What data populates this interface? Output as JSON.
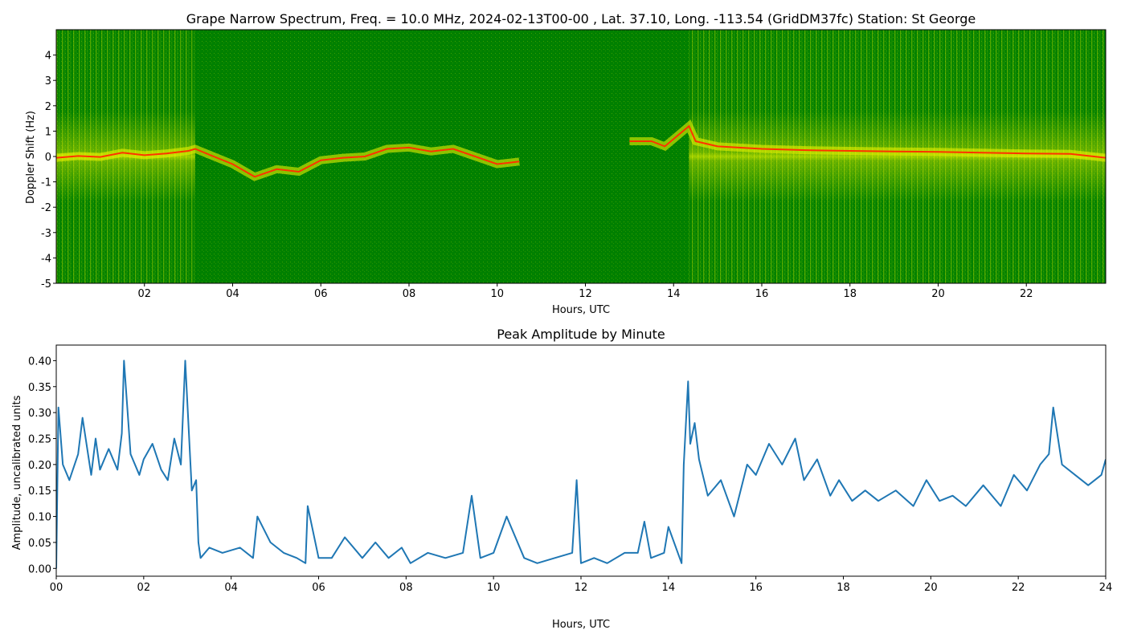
{
  "chart_data": [
    {
      "type": "heatmap",
      "title": "Grape Narrow Spectrum, Freq. = 10.0 MHz, 2024-02-13T00-00 , Lat.  37.10, Long. -113.54 (GridDM37fc) Station: St George",
      "xlabel": "Hours, UTC",
      "ylabel": "Doppler Shift (Hz)",
      "xlim": [
        0,
        23.8
      ],
      "ylim": [
        -5,
        5
      ],
      "x_ticks": [
        "02",
        "04",
        "06",
        "08",
        "10",
        "12",
        "14",
        "16",
        "18",
        "20",
        "22"
      ],
      "x_tick_values": [
        2,
        4,
        6,
        8,
        10,
        12,
        14,
        16,
        18,
        20,
        22
      ],
      "y_ticks": [
        "-5",
        "-4",
        "-3",
        "-2",
        "-1",
        "0",
        "1",
        "2",
        "3",
        "4"
      ],
      "y_tick_values": [
        -5,
        -4,
        -3,
        -2,
        -1,
        0,
        1,
        2,
        3,
        4
      ],
      "colors": {
        "background": "#008000",
        "mid": "#d8e800",
        "peak": "#ff3300"
      },
      "peak_trace_hours": [
        0,
        0.5,
        1,
        1.5,
        2,
        2.5,
        3,
        3.15,
        3.5,
        4,
        4.5,
        5,
        5.5,
        6,
        6.5,
        7,
        7.5,
        8,
        8.5,
        9,
        9.5,
        10,
        10.5,
        13,
        13.5,
        13.8,
        14.35,
        14.5,
        15,
        16,
        17,
        18,
        19,
        20,
        21,
        22,
        23,
        23.8
      ],
      "peak_trace_hz": [
        -0.05,
        0.02,
        -0.02,
        0.15,
        0.05,
        0.12,
        0.22,
        0.3,
        0.05,
        -0.3,
        -0.8,
        -0.5,
        -0.6,
        -0.15,
        -0.05,
        0.0,
        0.3,
        0.35,
        0.2,
        0.3,
        0.0,
        -0.3,
        -0.2,
        0.6,
        0.6,
        0.4,
        1.2,
        0.6,
        0.4,
        0.3,
        0.25,
        0.22,
        0.2,
        0.18,
        0.15,
        0.12,
        0.1,
        -0.05
      ]
    },
    {
      "type": "line",
      "title": "Peak Amplitude by Minute",
      "xlabel": "Hours, UTC",
      "ylabel": "Amplitude, uncalibrated units",
      "xlim": [
        0,
        24
      ],
      "ylim": [
        -0.015,
        0.43
      ],
      "x_ticks": [
        "00",
        "02",
        "04",
        "06",
        "08",
        "10",
        "12",
        "14",
        "16",
        "18",
        "20",
        "22",
        "24"
      ],
      "x_tick_values": [
        0,
        2,
        4,
        6,
        8,
        10,
        12,
        14,
        16,
        18,
        20,
        22,
        24
      ],
      "y_ticks": [
        "0.00",
        "0.05",
        "0.10",
        "0.15",
        "0.20",
        "0.25",
        "0.30",
        "0.35",
        "0.40"
      ],
      "y_tick_values": [
        0,
        0.05,
        0.1,
        0.15,
        0.2,
        0.25,
        0.3,
        0.35,
        0.4
      ],
      "color": "#1f77b4",
      "series": [
        {
          "x": [
            0,
            0.05,
            0.15,
            0.3,
            0.5,
            0.6,
            0.8,
            0.9,
            1.0,
            1.2,
            1.4,
            1.5,
            1.55,
            1.7,
            1.9,
            2.0,
            2.2,
            2.4,
            2.55,
            2.7,
            2.85,
            2.9,
            2.95,
            3.1,
            3.2,
            3.25,
            3.3,
            3.5,
            3.8,
            4.2,
            4.5,
            4.6,
            4.9,
            5.2,
            5.5,
            5.7,
            5.75,
            6.0,
            6.3,
            6.6,
            7.0,
            7.3,
            7.6,
            7.9,
            8.1,
            8.5,
            8.9,
            9.3,
            9.5,
            9.7,
            10.0,
            10.3,
            10.7,
            11.0,
            11.4,
            11.8,
            11.9,
            12.0,
            12.3,
            12.6,
            13.0,
            13.3,
            13.45,
            13.6,
            13.9,
            14.0,
            14.3,
            14.35,
            14.45,
            14.5,
            14.6,
            14.7,
            14.9,
            15.2,
            15.5,
            15.8,
            16.0,
            16.3,
            16.6,
            16.9,
            17.1,
            17.4,
            17.7,
            17.9,
            18.2,
            18.5,
            18.8,
            19.2,
            19.6,
            19.9,
            20.2,
            20.5,
            20.8,
            21.2,
            21.6,
            21.9,
            22.2,
            22.5,
            22.7,
            22.8,
            23.0,
            23.3,
            23.6,
            23.9,
            24.0
          ],
          "y": [
            0.0,
            0.31,
            0.2,
            0.17,
            0.22,
            0.29,
            0.18,
            0.25,
            0.19,
            0.23,
            0.19,
            0.26,
            0.4,
            0.22,
            0.18,
            0.21,
            0.24,
            0.19,
            0.17,
            0.25,
            0.2,
            0.3,
            0.4,
            0.15,
            0.17,
            0.05,
            0.02,
            0.04,
            0.03,
            0.04,
            0.02,
            0.1,
            0.05,
            0.03,
            0.02,
            0.01,
            0.12,
            0.02,
            0.02,
            0.06,
            0.02,
            0.05,
            0.02,
            0.04,
            0.01,
            0.03,
            0.02,
            0.03,
            0.14,
            0.02,
            0.03,
            0.1,
            0.02,
            0.01,
            0.02,
            0.03,
            0.17,
            0.01,
            0.02,
            0.01,
            0.03,
            0.03,
            0.09,
            0.02,
            0.03,
            0.08,
            0.01,
            0.2,
            0.36,
            0.24,
            0.28,
            0.21,
            0.14,
            0.17,
            0.1,
            0.2,
            0.18,
            0.24,
            0.2,
            0.25,
            0.17,
            0.21,
            0.14,
            0.17,
            0.13,
            0.15,
            0.13,
            0.15,
            0.12,
            0.17,
            0.13,
            0.14,
            0.12,
            0.16,
            0.12,
            0.18,
            0.15,
            0.2,
            0.22,
            0.31,
            0.2,
            0.18,
            0.16,
            0.18,
            0.21
          ]
        }
      ]
    }
  ]
}
